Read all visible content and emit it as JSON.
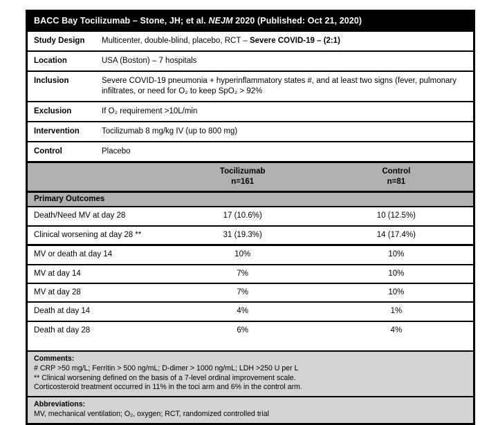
{
  "title": {
    "pre": "BACC Bay Tocilizumab – Stone, JH; et al. ",
    "italic": "NEJM",
    "post": " 2020 (Published: Oct 21, 2020)"
  },
  "study_info": [
    {
      "label": "Study Design",
      "value": "Multicenter, double-blind, placebo, RCT – ",
      "value_bold": "Severe COVID-19 – (2:1)"
    },
    {
      "label": "Location",
      "value": "USA (Boston) – 7 hospitals"
    },
    {
      "label": "Inclusion",
      "value": "Severe COVID-19 pneumonia + hyperinflammatory states #, and at least two signs (fever, pulmonary infiltrates, or need for O₂ to keep SpO₂ > 92%"
    },
    {
      "label": "Exclusion",
      "value": "If O₂ requirement >10L/min"
    },
    {
      "label": "Intervention",
      "value": "Tocilizumab 8 mg/kg IV (up to 800 mg)"
    },
    {
      "label": "Control",
      "value": "Placebo"
    }
  ],
  "groups": {
    "tocilizumab": {
      "name": "Tocilizumab",
      "n": "n=161"
    },
    "control": {
      "name": "Control",
      "n": "n=81"
    }
  },
  "outcomes": {
    "section_label": "Primary Outcomes",
    "rows": [
      {
        "label": "Death/Need MV at day 28",
        "toci": "17 (10.6%)",
        "control": "10 (12.5%)"
      },
      {
        "label": "Clinical worsening at day 28 **",
        "toci": "31 (19.3%)",
        "control": "14 (17.4%)"
      },
      {
        "label": "MV or death at day 14",
        "toci": "10%",
        "control": "10%"
      },
      {
        "label": "MV at day 14",
        "toci": "7%",
        "control": "10%"
      },
      {
        "label": "MV at day 28",
        "toci": "7%",
        "control": "10%"
      },
      {
        "label": "Death at day 14",
        "toci": "4%",
        "control": "1%"
      },
      {
        "label": "Death at day 28",
        "toci": "6%",
        "control": "4%"
      }
    ]
  },
  "comments": {
    "heading": "Comments:",
    "lines": [
      "# CRP >50 mg/L; Ferritin > 500 ng/mL; D-dimer > 1000 ng/mL; LDH >250 U per L",
      "** Clinical worsening defined on the basis of a 7-level ordinal improvement scale.",
      "Corticosteroid treatment occurred in 11% in the toci arm and 6% in the control arm."
    ]
  },
  "abbreviations": {
    "heading": "Abbreviations:",
    "text": "MV, mechanical ventilation; O₂, oxygen; RCT, randomized controlled trial"
  },
  "colors": {
    "header_gray": "#b0b0b0",
    "note_gray": "#d4d4d4",
    "title_bg": "#000000",
    "border": "#000000"
  }
}
